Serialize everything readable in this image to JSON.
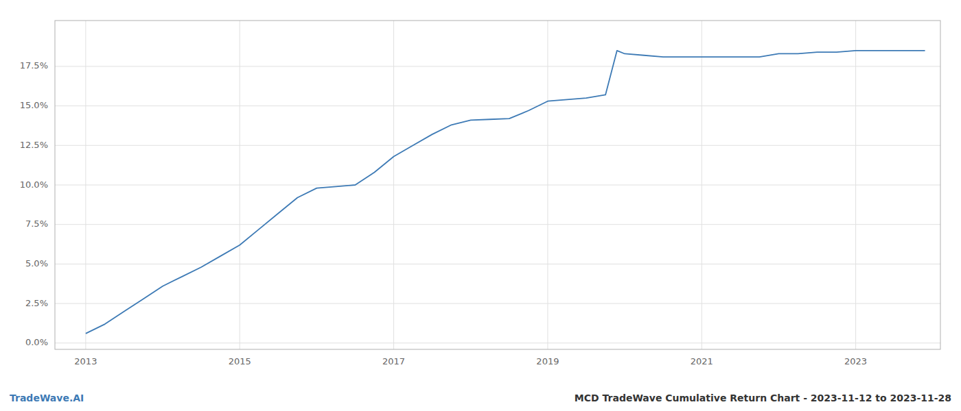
{
  "chart_data": {
    "type": "line",
    "title": "MCD TradeWave Cumulative Return Chart - 2023-11-12 to 2023-11-28",
    "annotations": [
      {
        "text": "TradeWave.AI",
        "color": "#3d7ab5"
      }
    ],
    "color": "#3d7ab5",
    "grid": true,
    "x": [
      2013.0,
      2013.25,
      2013.5,
      2013.75,
      2014.0,
      2014.25,
      2014.5,
      2014.75,
      2015.0,
      2015.25,
      2015.5,
      2015.75,
      2016.0,
      2016.25,
      2016.5,
      2016.75,
      2017.0,
      2017.25,
      2017.5,
      2017.75,
      2018.0,
      2018.25,
      2018.5,
      2018.75,
      2019.0,
      2019.25,
      2019.5,
      2019.75,
      2019.9,
      2020.0,
      2020.25,
      2020.5,
      2020.75,
      2021.0,
      2021.25,
      2021.5,
      2021.75,
      2022.0,
      2022.25,
      2022.5,
      2022.75,
      2023.0,
      2023.5,
      2023.9
    ],
    "values": [
      0.006,
      0.012,
      0.02,
      0.028,
      0.036,
      0.042,
      0.048,
      0.055,
      0.062,
      0.072,
      0.082,
      0.092,
      0.098,
      0.099,
      0.1,
      0.108,
      0.118,
      0.125,
      0.132,
      0.138,
      0.141,
      0.1415,
      0.142,
      0.147,
      0.153,
      0.154,
      0.155,
      0.157,
      0.185,
      0.183,
      0.182,
      0.181,
      0.181,
      0.181,
      0.181,
      0.181,
      0.181,
      0.183,
      0.183,
      0.184,
      0.184,
      0.185,
      0.185,
      0.185
    ],
    "xlim": [
      2012.6,
      2024.1
    ],
    "ylim": [
      -0.004,
      0.204
    ],
    "xticks": [
      2013,
      2015,
      2017,
      2019,
      2021,
      2023
    ],
    "yticks": [
      {
        "value": 0.0,
        "label": "0.0%"
      },
      {
        "value": 0.025,
        "label": "2.5%"
      },
      {
        "value": 0.05,
        "label": "5.0%"
      },
      {
        "value": 0.075,
        "label": "7.5%"
      },
      {
        "value": 0.1,
        "label": "10.0%"
      },
      {
        "value": 0.125,
        "label": "12.5%"
      },
      {
        "value": 0.15,
        "label": "15.0%"
      },
      {
        "value": 0.175,
        "label": "17.5%"
      }
    ]
  }
}
